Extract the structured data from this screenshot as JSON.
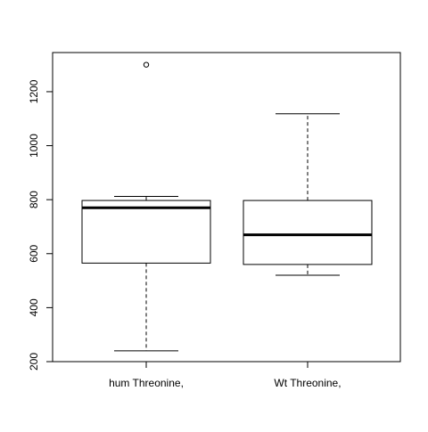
{
  "chart_data": {
    "type": "boxplot",
    "categories": [
      "hum Threonine,",
      "Wt Threonine,"
    ],
    "boxes": [
      {
        "name": "hum Threonine,",
        "whisker_low": 240,
        "q1": 565,
        "median": 770,
        "q3": 797,
        "whisker_high": 812,
        "outliers": [
          1300
        ]
      },
      {
        "name": "Wt Threonine,",
        "whisker_low": 520,
        "q1": 560,
        "median": 670,
        "q3": 797,
        "whisker_high": 1118,
        "outliers": []
      }
    ],
    "y_ticks": [
      200,
      400,
      600,
      800,
      1000,
      1200
    ],
    "ylim": [
      200,
      1345
    ],
    "grid": false,
    "colors": {
      "box_fill": "#ffffff",
      "stroke": "#000000"
    }
  }
}
